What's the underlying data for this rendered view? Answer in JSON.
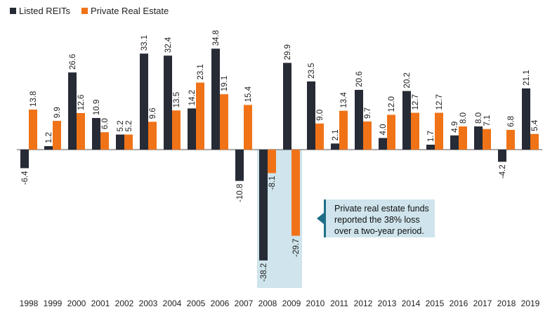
{
  "chart_data": {
    "type": "bar",
    "categories": [
      "1998",
      "1999",
      "2000",
      "2001",
      "2002",
      "2003",
      "2004",
      "2005",
      "2006",
      "2007",
      "2008",
      "2009",
      "2010",
      "2011",
      "2012",
      "2013",
      "2014",
      "2015",
      "2016",
      "2017",
      "2018",
      "2019"
    ],
    "series": [
      {
        "name": "Listed REITs",
        "color": "#262b36",
        "values": [
          -6.4,
          1.2,
          26.6,
          10.9,
          5.2,
          33.1,
          32.4,
          14.2,
          34.8,
          -10.8,
          -38.2,
          29.9,
          23.5,
          2.1,
          20.6,
          4.0,
          20.2,
          1.7,
          4.9,
          8.0,
          -4.2,
          21.1
        ]
      },
      {
        "name": "Private Real Estate",
        "color": "#f07318",
        "values": [
          13.8,
          9.9,
          12.6,
          6.0,
          5.2,
          9.6,
          13.5,
          23.1,
          19.1,
          15.4,
          -8.1,
          -29.7,
          9.0,
          13.4,
          9.7,
          12.0,
          12.7,
          12.7,
          8.0,
          7.1,
          6.8,
          5.4
        ]
      }
    ],
    "highlight": {
      "categories": [
        "2008",
        "2009"
      ],
      "color": "#cfe4ec"
    },
    "annotation": "Private real estate funds reported the 38% loss over a two-year period.",
    "legend_position": "top-left",
    "grid": false
  }
}
